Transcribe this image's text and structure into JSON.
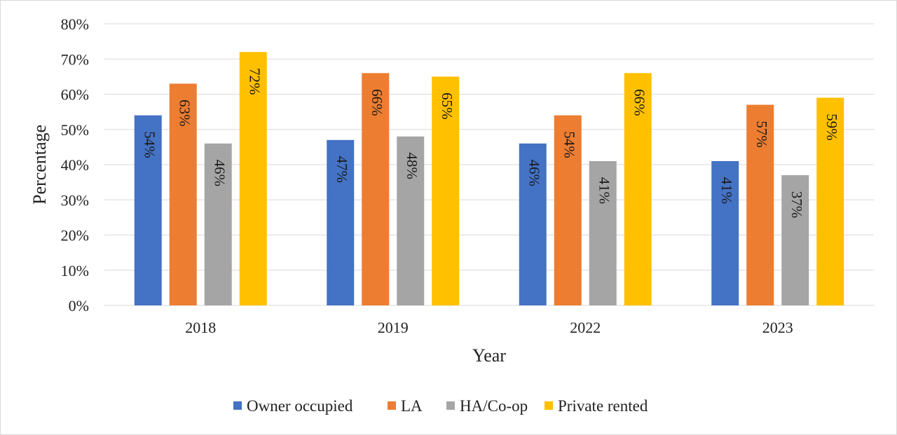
{
  "chart_data": {
    "type": "bar",
    "title": "",
    "xlabel": "Year",
    "ylabel": "Percentage",
    "ylim": [
      0,
      80
    ],
    "yticks": [
      "0%",
      "10%",
      "20%",
      "30%",
      "40%",
      "50%",
      "60%",
      "70%",
      "80%"
    ],
    "categories": [
      "2018",
      "2019",
      "2022",
      "2023"
    ],
    "series": [
      {
        "name": "Owner occupied",
        "color": "#4472C4",
        "values": [
          54,
          47,
          46,
          41
        ],
        "labels": [
          "54%",
          "47%",
          "46%",
          "41%"
        ]
      },
      {
        "name": "LA",
        "color": "#ED7D31",
        "values": [
          63,
          66,
          54,
          57
        ],
        "labels": [
          "63%",
          "66%",
          "54%",
          "57%"
        ]
      },
      {
        "name": "HA/Co-op",
        "color": "#A5A5A5",
        "values": [
          46,
          48,
          41,
          37
        ],
        "labels": [
          "46%",
          "48%",
          "41%",
          "37%"
        ]
      },
      {
        "name": "Private rented",
        "color": "#FFC000",
        "values": [
          72,
          65,
          66,
          59
        ],
        "labels": [
          "72%",
          "65%",
          "66%",
          "59%"
        ]
      }
    ],
    "grid": true,
    "legend": "bottom",
    "data_labels": "inside-rotated"
  }
}
